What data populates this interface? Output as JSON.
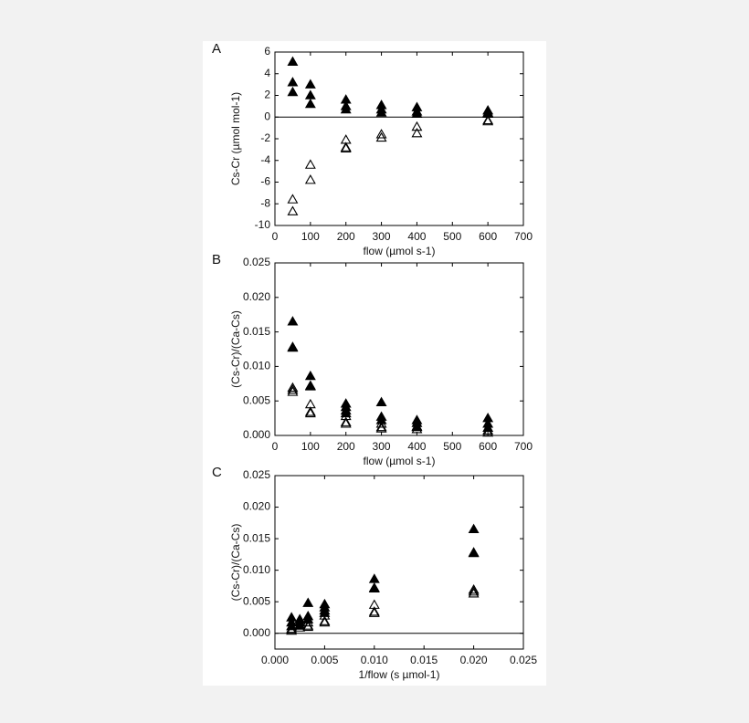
{
  "chart_data": [
    {
      "type": "scatter",
      "panel_label": "A",
      "y_label": "Cs-Cr (µmol mol-1)",
      "x_label": "flow (µmol s-1)",
      "xlim": [
        0,
        700
      ],
      "xticks": [
        0,
        100,
        200,
        300,
        400,
        500,
        600,
        700
      ],
      "ylim": [
        -10,
        6
      ],
      "yticks": [
        -10,
        -8,
        -6,
        -4,
        -2,
        0,
        2,
        4,
        6
      ],
      "zero_line": true,
      "series": [
        {
          "color": "#000000",
          "filled": true,
          "x": [
            50,
            50,
            50,
            100,
            100,
            100,
            200,
            200,
            200,
            300,
            300,
            300,
            400,
            400,
            400,
            600,
            600,
            600
          ],
          "values": [
            5.1,
            3.2,
            2.3,
            3.0,
            2.0,
            1.2,
            1.6,
            1.0,
            0.7,
            1.1,
            0.7,
            0.4,
            0.9,
            0.5,
            0.3,
            0.6,
            0.4,
            0.3
          ]
        },
        {
          "color": "#000000",
          "filled": false,
          "x": [
            50,
            50,
            100,
            100,
            200,
            200,
            200,
            300,
            300,
            400,
            400,
            600,
            600
          ],
          "values": [
            -7.6,
            -8.7,
            -4.4,
            -5.8,
            -2.1,
            -2.8,
            -2.9,
            -1.6,
            -1.9,
            -0.9,
            -1.5,
            -0.3,
            -0.4
          ]
        }
      ]
    },
    {
      "type": "scatter",
      "panel_label": "B",
      "y_label": "(Cs-Cr)/(Ca-Cs)",
      "x_label": "flow (µmol s-1)",
      "xlim": [
        0,
        700
      ],
      "xticks": [
        0,
        100,
        200,
        300,
        400,
        500,
        600,
        700
      ],
      "ylim": [
        0,
        0.025
      ],
      "yticks": [
        {
          "value": 0,
          "label": "0.000"
        },
        0.005,
        {
          "value": 0.01,
          "label": "0.010"
        },
        0.015,
        {
          "value": 0.02,
          "label": "0.020"
        },
        0.025
      ],
      "zero_line": false,
      "series": [
        {
          "color": "#000000",
          "filled": true,
          "x": [
            50,
            50,
            50,
            100,
            100,
            100,
            200,
            200,
            200,
            200,
            300,
            300,
            300,
            400,
            400,
            400,
            600,
            600,
            600
          ],
          "values": [
            0.0165,
            0.0128,
            0.0127,
            0.0086,
            0.0072,
            0.0071,
            0.0046,
            0.0041,
            0.0036,
            0.0032,
            0.0048,
            0.0027,
            0.0022,
            0.0022,
            0.0018,
            0.0013,
            0.0025,
            0.0017,
            0.0011
          ]
        },
        {
          "color": "#000000",
          "filled": false,
          "x": [
            50,
            50,
            50,
            100,
            100,
            100,
            200,
            200,
            200,
            300,
            300,
            300,
            400,
            400,
            600,
            600
          ],
          "values": [
            0.0069,
            0.0066,
            0.0063,
            0.0045,
            0.0034,
            0.0032,
            0.0028,
            0.0019,
            0.0017,
            0.0017,
            0.0012,
            0.001,
            0.0012,
            0.0009,
            0.0007,
            0.0004
          ]
        }
      ]
    },
    {
      "type": "scatter",
      "panel_label": "C",
      "y_label": "(Cs-Cr)/(Ca-Cs)",
      "x_label": "1/flow (s µmol-1)",
      "xlim": [
        0,
        0.025
      ],
      "xticks": [
        {
          "value": 0,
          "label": "0.000"
        },
        0.005,
        {
          "value": 0.01,
          "label": "0.010"
        },
        0.015,
        {
          "value": 0.02,
          "label": "0.020"
        },
        0.025
      ],
      "ylim": [
        -0.0025,
        0.025
      ],
      "yticks": [
        {
          "value": 0,
          "label": "0.000"
        },
        0.005,
        {
          "value": 0.01,
          "label": "0.010"
        },
        0.015,
        {
          "value": 0.02,
          "label": "0.020"
        },
        0.025
      ],
      "zero_line": true,
      "series": [
        {
          "color": "#000000",
          "filled": true,
          "x": [
            0.02,
            0.02,
            0.02,
            0.01,
            0.01,
            0.01,
            0.005,
            0.005,
            0.005,
            0.005,
            0.00333,
            0.00333,
            0.00333,
            0.0025,
            0.0025,
            0.0025,
            0.001667,
            0.001667,
            0.001667
          ],
          "values": [
            0.0165,
            0.0128,
            0.0127,
            0.0086,
            0.0072,
            0.0071,
            0.0046,
            0.0041,
            0.0036,
            0.0032,
            0.0048,
            0.0027,
            0.0022,
            0.0022,
            0.0018,
            0.0013,
            0.0025,
            0.0017,
            0.0011
          ]
        },
        {
          "color": "#000000",
          "filled": false,
          "x": [
            0.02,
            0.02,
            0.02,
            0.01,
            0.01,
            0.01,
            0.005,
            0.005,
            0.005,
            0.00333,
            0.00333,
            0.00333,
            0.0025,
            0.0025,
            0.001667,
            0.001667
          ],
          "values": [
            0.0069,
            0.0066,
            0.0063,
            0.0045,
            0.0034,
            0.0032,
            0.0028,
            0.0019,
            0.0017,
            0.0017,
            0.0012,
            0.001,
            0.0012,
            0.0009,
            0.0007,
            0.0004
          ]
        }
      ]
    }
  ]
}
